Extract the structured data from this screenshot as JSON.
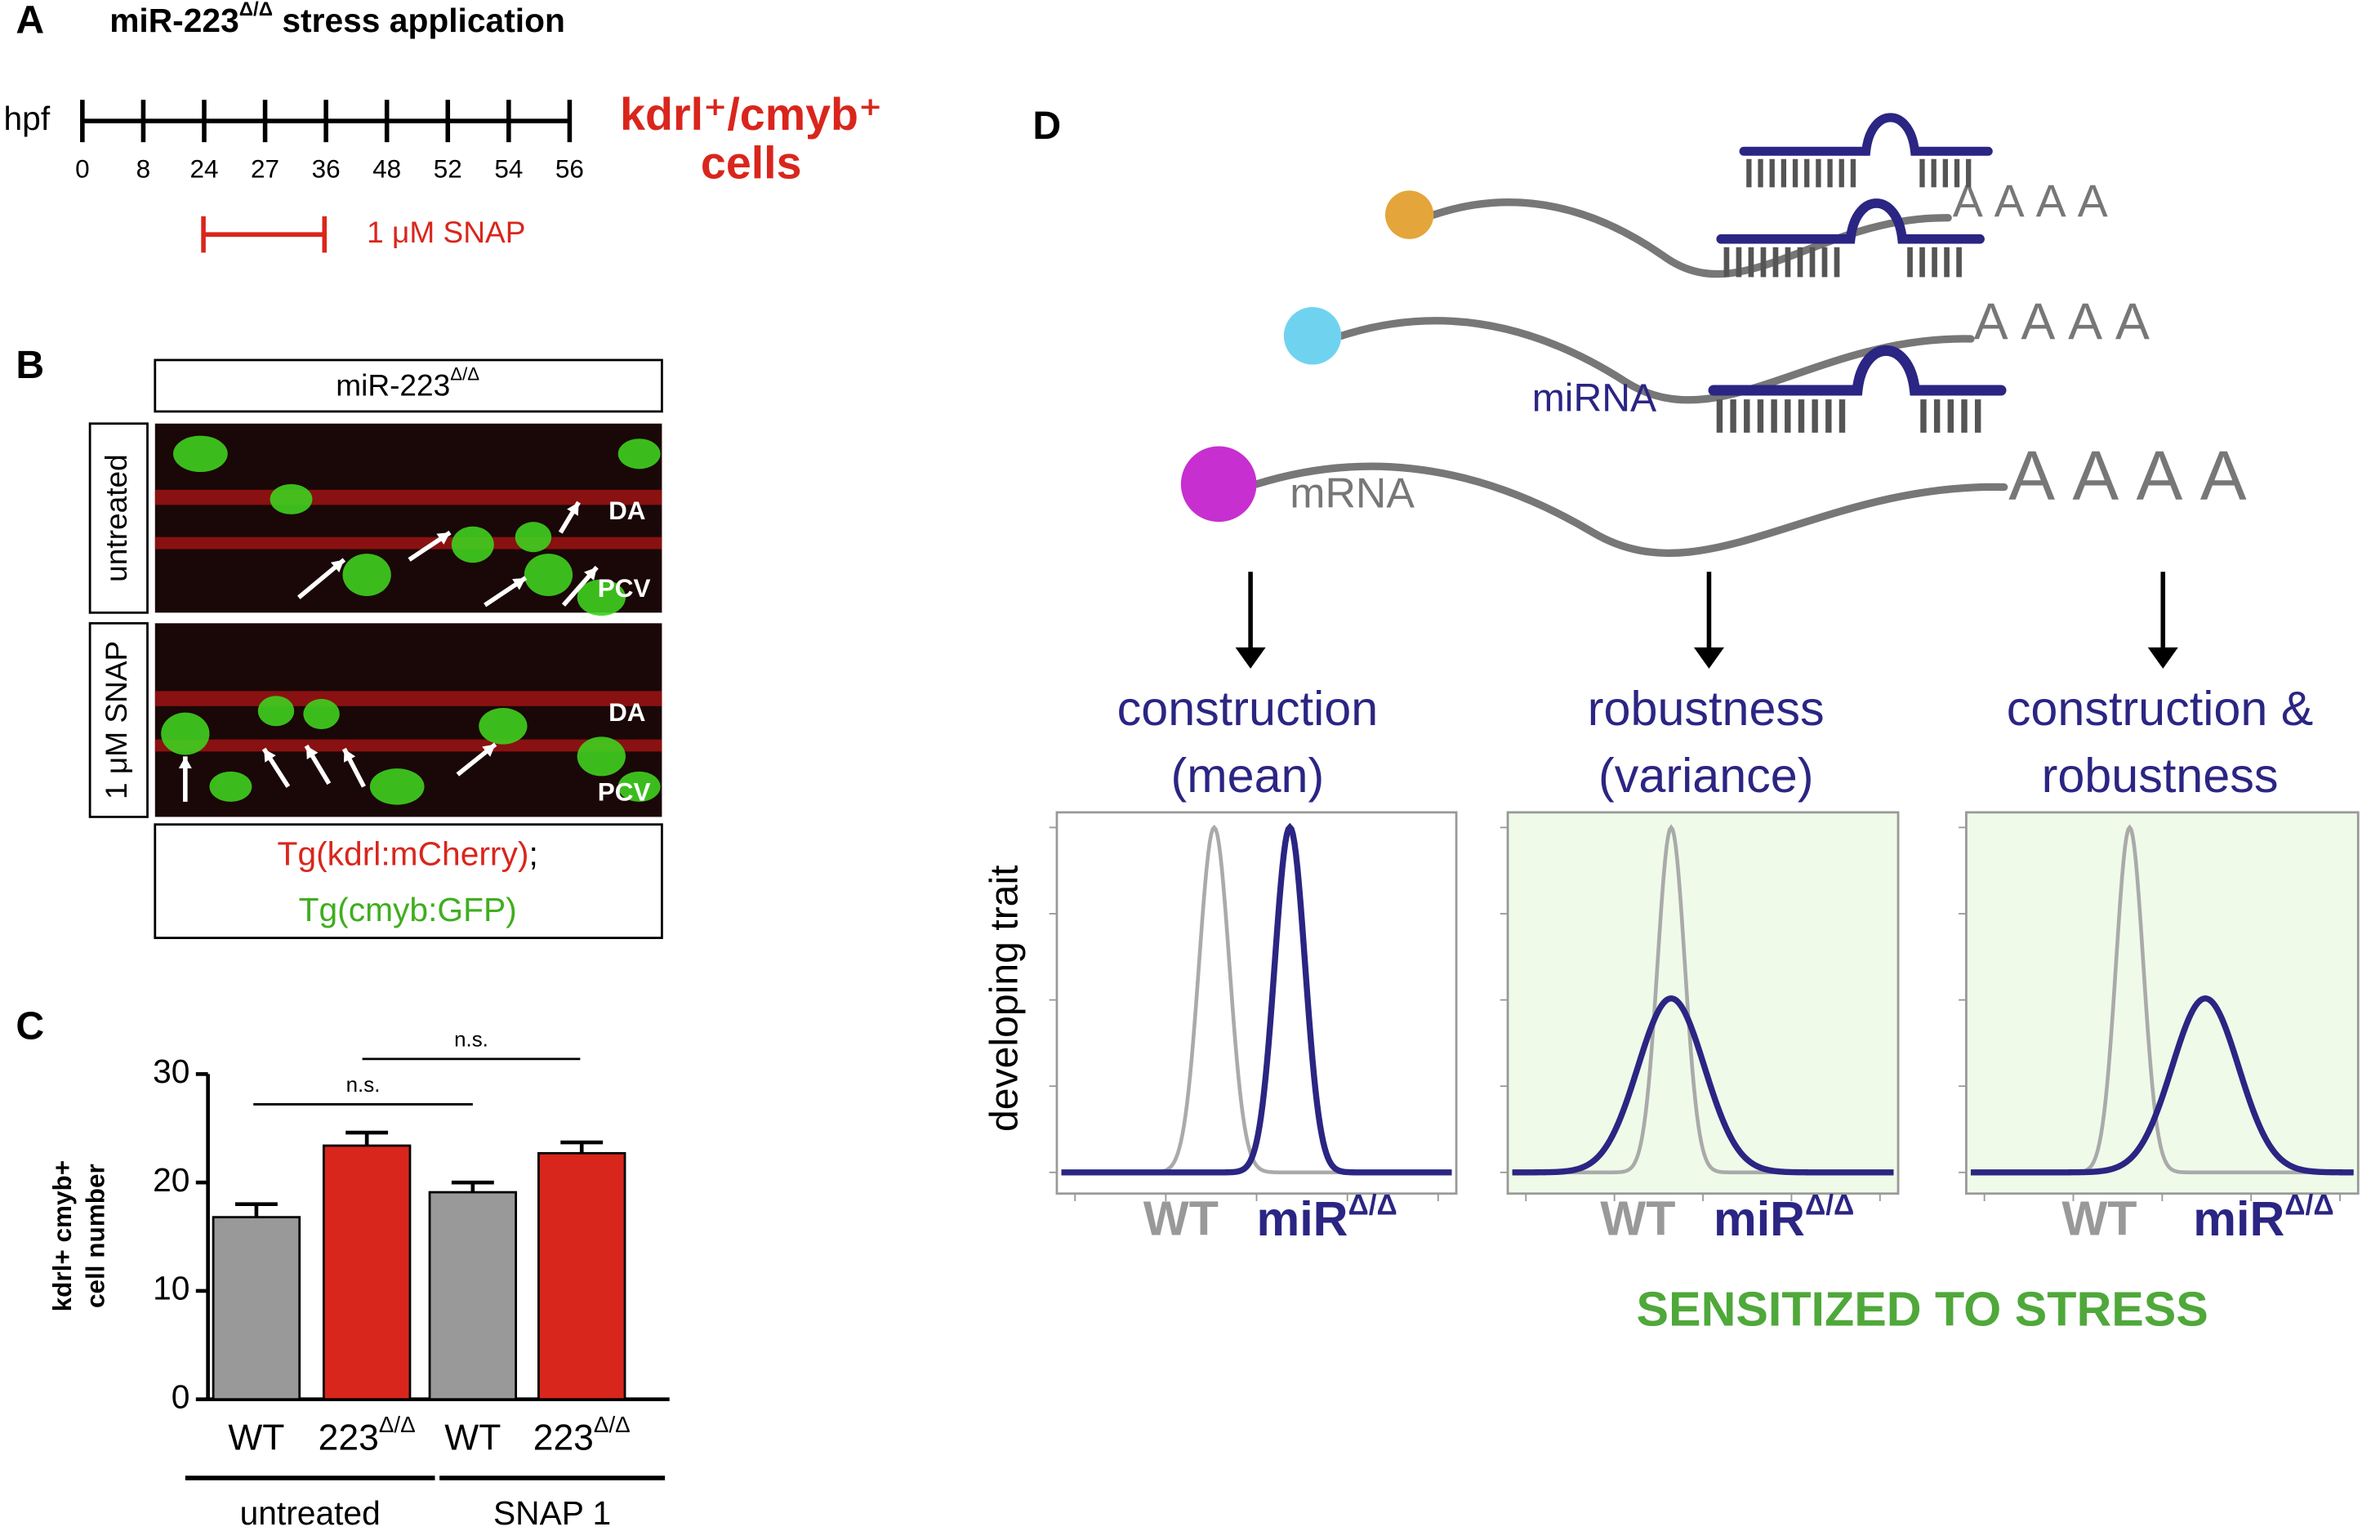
{
  "panels": {
    "A": {
      "label": "A",
      "title": {
        "text": "miR-223",
        "sup": "Δ/Δ",
        "rest": " stress application"
      },
      "axis_label": "hpf",
      "timepoints": [
        "0",
        "8",
        "24",
        "27",
        "36",
        "48",
        "52",
        "54",
        "56"
      ],
      "outcome": [
        "kdrl⁺/cmyb⁺",
        "cells"
      ],
      "treatment": "1 μM SNAP"
    },
    "B": {
      "label": "B",
      "header": {
        "text": "miR-223",
        "sup": "Δ/Δ"
      },
      "rows": [
        {
          "label": "untreated",
          "annotations": [
            "DA",
            "PCV"
          ]
        },
        {
          "label": "1 μM SNAP",
          "annotations": [
            "DA",
            "PCV"
          ]
        }
      ],
      "legend": {
        "line1": "Tg(kdrl:mCherry)",
        "separator": ";",
        "line2": "Tg(cmyb:GFP)"
      }
    },
    "D": {
      "label": "D",
      "poly_a": [
        "AAAA",
        "AAAA",
        "AAAA"
      ],
      "mirna": "miRNA",
      "mrna": "mRNA",
      "columns": [
        {
          "title": [
            "construction",
            "(mean)"
          ]
        },
        {
          "title": [
            "robustness",
            "(variance)"
          ]
        },
        {
          "title": [
            "construction &",
            "robustness"
          ]
        }
      ],
      "y_label": "developing trait",
      "x_labels": {
        "wt": "WT",
        "mutant": "miR",
        "sup": "Δ/Δ"
      },
      "footer": "SENSITIZED TO STRESS"
    }
  },
  "chart_data": {
    "type": "bar",
    "panel_label": "C",
    "ylabel": [
      "kdrl+ cmyb+",
      "cell number"
    ],
    "categories": [
      "WT",
      "223",
      "WT",
      "223"
    ],
    "category_superscripts": [
      null,
      "Δ/Δ",
      null,
      "Δ/Δ"
    ],
    "values": [
      16.8,
      23.4,
      19.1,
      22.7
    ],
    "errors": [
      1.2,
      1.2,
      0.9,
      1.0
    ],
    "colors": [
      "#999999",
      "#d9261c",
      "#999999",
      "#d9261c"
    ],
    "ylim": [
      0,
      30
    ],
    "yticks": [
      0,
      10,
      20,
      30
    ],
    "groups": [
      "untreated",
      "SNAP 1"
    ],
    "significance": [
      "n.s.",
      "n.s."
    ]
  }
}
